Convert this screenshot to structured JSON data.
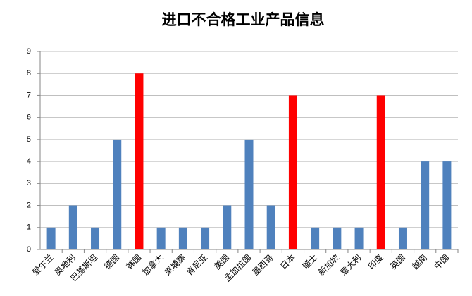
{
  "chart_data": {
    "type": "bar",
    "title": "进口不合格工业产品信息",
    "categories": [
      "爱尔兰",
      "奥地利",
      "巴基斯坦",
      "德国",
      "韩国",
      "加拿大",
      "柬埔寨",
      "肯尼亚",
      "美国",
      "孟加拉国",
      "墨西哥",
      "日本",
      "瑞士",
      "新加坡",
      "意大利",
      "印度",
      "英国",
      "越南",
      "中国"
    ],
    "values": [
      1,
      2,
      1,
      5,
      8,
      1,
      1,
      1,
      2,
      5,
      2,
      7,
      1,
      1,
      1,
      7,
      1,
      4,
      4
    ],
    "colors": [
      "#4f81bd",
      "#4f81bd",
      "#4f81bd",
      "#4f81bd",
      "#ff0000",
      "#4f81bd",
      "#4f81bd",
      "#4f81bd",
      "#4f81bd",
      "#4f81bd",
      "#4f81bd",
      "#ff0000",
      "#4f81bd",
      "#4f81bd",
      "#4f81bd",
      "#ff0000",
      "#4f81bd",
      "#4f81bd",
      "#4f81bd"
    ],
    "ylim": [
      0,
      9
    ],
    "yticks": [
      0,
      1,
      2,
      3,
      4,
      5,
      6,
      7,
      8,
      9
    ],
    "grid": true
  }
}
